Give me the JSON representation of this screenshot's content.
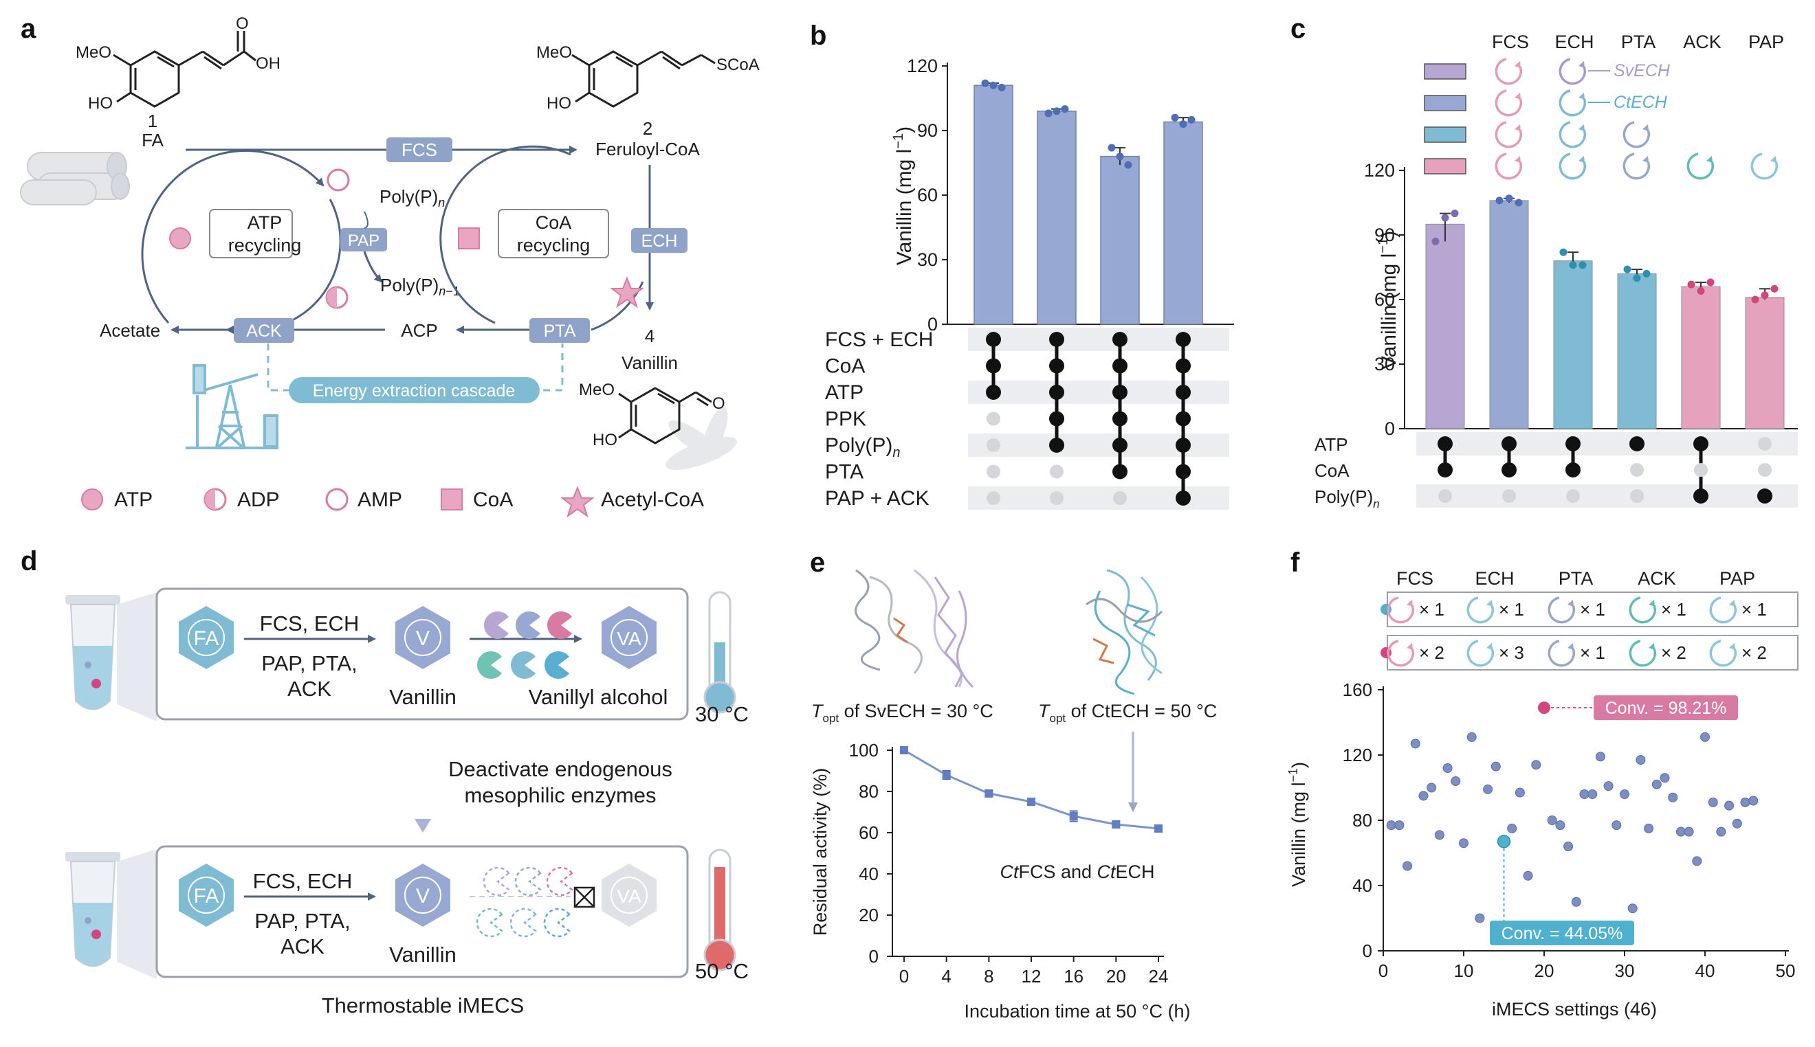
{
  "colors": {
    "enzyme_box": "#8fa2c7",
    "bar_blue": "#97a9d3",
    "bar_purple": "#b6a6d1",
    "bar_teal": "#7fbcd4",
    "bar_pink": "#e4a2bc",
    "pink": "#d97aa3",
    "arrow": "#4f6384",
    "dot_blue": "#4e6fb5",
    "dot_pink": "#d4457d",
    "cyan_label": "#5aaed0",
    "red_temp": "#e06a6a"
  },
  "panel_labels": [
    "a",
    "b",
    "c",
    "d",
    "e",
    "f"
  ],
  "panel_a": {
    "cmpd1_num": "1",
    "cmpd1_name": "FA",
    "cmpd2_num": "2",
    "cmpd2_name": "Feruloyl-CoA",
    "cmpd4_num": "4",
    "cmpd4_name": "Vanillin",
    "meo": "MeO",
    "ho": "HO",
    "oh": "OH",
    "o": "O",
    "scoa": "SCoA",
    "enzymes": {
      "fcs": "FCS",
      "pap": "PAP",
      "ech": "ECH",
      "ack": "ACK",
      "pta": "PTA"
    },
    "atp_recycling": [
      "ATP",
      "recycling"
    ],
    "coa_recycling": [
      "CoA",
      "recycling"
    ],
    "polyp_n": "Poly(P)n",
    "polyp_n1": "Poly(P)n−1",
    "acetate": "Acetate",
    "acp": "ACP",
    "cascade": "Energy extraction cascade",
    "legend": [
      "ATP",
      "ADP",
      "AMP",
      "CoA",
      "Acetyl-CoA"
    ]
  },
  "panel_b": {
    "chart_data": {
      "type": "bar",
      "ylabel": "Vanillin (mg l−1)",
      "ylim": [
        0,
        120
      ],
      "yticks": [
        0,
        30,
        60,
        90,
        120
      ],
      "values": [
        111,
        99,
        78,
        94
      ],
      "points": [
        [
          112,
          111,
          110
        ],
        [
          98,
          99,
          100
        ],
        [
          82,
          78,
          74
        ],
        [
          96,
          93,
          95
        ]
      ],
      "rows": [
        "FCS + ECH",
        "CoA",
        "ATP",
        "PPK",
        "Poly(P)n",
        "PTA",
        "PAP + ACK"
      ],
      "matrix": [
        [
          1,
          1,
          1,
          0,
          0,
          0,
          0
        ],
        [
          1,
          1,
          1,
          1,
          1,
          0,
          0
        ],
        [
          1,
          1,
          1,
          1,
          1,
          1,
          0
        ],
        [
          1,
          1,
          1,
          1,
          1,
          1,
          1
        ]
      ]
    }
  },
  "panel_c": {
    "headers": [
      "FCS",
      "ECH",
      "PTA",
      "ACK",
      "PAP"
    ],
    "sv_label": "SvECH",
    "ct_label": "CtECH",
    "chart_data": {
      "type": "bar",
      "ylabel": "Vanillin (mg l−1)",
      "ylim": [
        0,
        120
      ],
      "yticks": [
        0,
        30,
        60,
        90,
        120
      ],
      "values": [
        95,
        106,
        78,
        72,
        66,
        61
      ],
      "points": [
        [
          87,
          98,
          100
        ],
        [
          106,
          107,
          105
        ],
        [
          82,
          76,
          76
        ],
        [
          74,
          70,
          72
        ],
        [
          67,
          64,
          68
        ],
        [
          60,
          62,
          65
        ]
      ],
      "bar_colors": [
        "purple",
        "blue",
        "teal",
        "teal",
        "pink",
        "pink"
      ],
      "rows": [
        "ATP",
        "CoA",
        "Poly(P)n"
      ],
      "matrix": [
        [
          1,
          1,
          0
        ],
        [
          1,
          1,
          0
        ],
        [
          1,
          1,
          0
        ],
        [
          1,
          0,
          0
        ],
        [
          1,
          0,
          1
        ],
        [
          0,
          0,
          1
        ]
      ]
    }
  },
  "panel_d": {
    "fa": "FA",
    "v": "V",
    "va": "VA",
    "top_label": "FCS, ECH",
    "bottom_label": [
      "PAP, PTA,",
      "ACK"
    ],
    "vanillin": "Vanillin",
    "vanillyl_alcohol": "Vanillyl alcohol",
    "temp_low": "30 °C",
    "temp_high": "50 °C",
    "middle_text": [
      "Deactivate endogenous",
      "mesophilic enzymes"
    ],
    "caption": "Thermostable iMECS"
  },
  "panel_e": {
    "t_sv_prefix": "T",
    "t_sub": "opt",
    "t_sv_suffix": " of SvECH = 30 °C",
    "t_ct_suffix": " of CtECH = 50 °C",
    "annotation": "CtFCS and CtECH",
    "chart_data": {
      "type": "line",
      "xlabel": "Incubation time at 50 °C (h)",
      "ylabel": "Residual activity (%)",
      "x": [
        0,
        4,
        8,
        12,
        16,
        20,
        24
      ],
      "y": [
        100,
        88,
        79,
        75,
        68,
        64,
        62
      ],
      "err": [
        0,
        2,
        1.5,
        1,
        2.5,
        1.5,
        1
      ],
      "xlim": [
        0,
        24
      ],
      "ylim": [
        0,
        100
      ],
      "xticks": [
        0,
        4,
        8,
        12,
        16,
        20,
        24
      ],
      "yticks": [
        0,
        20,
        40,
        60,
        80,
        100
      ]
    }
  },
  "panel_f": {
    "headers": [
      "FCS",
      "ECH",
      "PTA",
      "ACK",
      "PAP"
    ],
    "row1": [
      "× 1",
      "× 1",
      "× 1",
      "× 1",
      "× 1"
    ],
    "row2": [
      "× 2",
      "× 3",
      "× 1",
      "× 2",
      "× 2"
    ],
    "conv_high": "Conv. = 98.21%",
    "conv_low": "Conv. = 44.05%",
    "chart_data": {
      "type": "scatter",
      "xlabel": "iMECS settings (46)",
      "ylabel": "Vanillin (mg l−1)",
      "xlim": [
        0,
        50
      ],
      "ylim": [
        0,
        160
      ],
      "xticks": [
        0,
        10,
        20,
        30,
        40,
        50
      ],
      "yticks": [
        0,
        40,
        80,
        120,
        160
      ],
      "points": [
        [
          1,
          77
        ],
        [
          2,
          77
        ],
        [
          3,
          52
        ],
        [
          4,
          127
        ],
        [
          5,
          95
        ],
        [
          6,
          100
        ],
        [
          7,
          71
        ],
        [
          8,
          112
        ],
        [
          9,
          104
        ],
        [
          10,
          66
        ],
        [
          11,
          131
        ],
        [
          12,
          20
        ],
        [
          13,
          99
        ],
        [
          14,
          113
        ],
        [
          15,
          67
        ],
        [
          16,
          75
        ],
        [
          17,
          97
        ],
        [
          18,
          46
        ],
        [
          19,
          114
        ],
        [
          21,
          80
        ],
        [
          22,
          77
        ],
        [
          23,
          64
        ],
        [
          24,
          30
        ],
        [
          25,
          96
        ],
        [
          26,
          96
        ],
        [
          27,
          119
        ],
        [
          28,
          101
        ],
        [
          29,
          77
        ],
        [
          30,
          96
        ],
        [
          31,
          26
        ],
        [
          32,
          117
        ],
        [
          33,
          75
        ],
        [
          34,
          102
        ],
        [
          35,
          106
        ],
        [
          36,
          94
        ],
        [
          37,
          73
        ],
        [
          38,
          73
        ],
        [
          39,
          55
        ],
        [
          40,
          131
        ],
        [
          41,
          91
        ],
        [
          42,
          73
        ],
        [
          43,
          89
        ],
        [
          44,
          78
        ],
        [
          45,
          91
        ],
        [
          46,
          92
        ],
        [
          20,
          149
        ]
      ],
      "highlight_high": [
        20,
        149
      ],
      "highlight_low": [
        15,
        67
      ]
    }
  }
}
